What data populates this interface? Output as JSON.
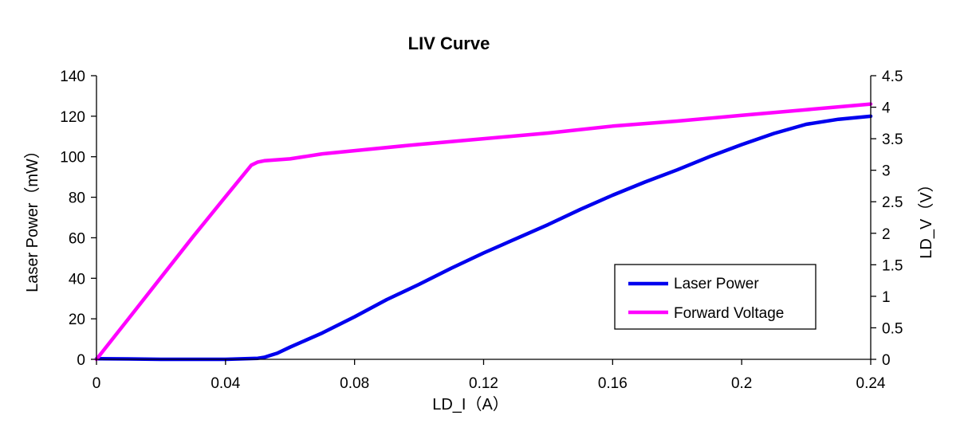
{
  "chart_data": {
    "type": "line",
    "title": "LIV Curve",
    "xlabel": "LD_I（A）",
    "ylabel": "Laser Power（mW）",
    "y2label": "LD_V（V）",
    "xlim": [
      0,
      0.24
    ],
    "ylim": [
      0,
      140
    ],
    "y2lim": [
      0,
      4.5
    ],
    "xticks": [
      "0",
      "0.04",
      "0.08",
      "0.12",
      "0.16",
      "0.2",
      "0.24"
    ],
    "yticks": [
      "0",
      "20",
      "40",
      "60",
      "80",
      "100",
      "120",
      "140"
    ],
    "y2ticks": [
      "0",
      "0.5",
      "1",
      "1.5",
      "2",
      "2.5",
      "3",
      "3.5",
      "4",
      "4.5"
    ],
    "grid": false,
    "legend_position": "lower-right",
    "series": [
      {
        "name": "Laser Power",
        "axis": "left",
        "color": "#0000ee",
        "x": [
          0,
          0.01,
          0.02,
          0.03,
          0.04,
          0.05,
          0.052,
          0.054,
          0.056,
          0.06,
          0.07,
          0.08,
          0.09,
          0.1,
          0.11,
          0.12,
          0.13,
          0.14,
          0.15,
          0.16,
          0.17,
          0.18,
          0.19,
          0.2,
          0.21,
          0.22,
          0.23,
          0.24
        ],
        "y": [
          0.3,
          0.2,
          0,
          0,
          0,
          0.5,
          1,
          2,
          3,
          6,
          13,
          21,
          29.5,
          37,
          45,
          52.5,
          59.5,
          66.5,
          74,
          81,
          87.5,
          93.5,
          100,
          106,
          111.5,
          116,
          118.5,
          120
        ]
      },
      {
        "name": "Forward Voltage",
        "axis": "right",
        "color": "#ff00ff",
        "x": [
          0,
          0.01,
          0.02,
          0.03,
          0.04,
          0.048,
          0.05,
          0.052,
          0.06,
          0.07,
          0.08,
          0.1,
          0.12,
          0.14,
          0.16,
          0.18,
          0.2,
          0.22,
          0.24
        ],
        "y": [
          0,
          0.65,
          1.3,
          1.95,
          2.58,
          3.08,
          3.13,
          3.15,
          3.18,
          3.26,
          3.31,
          3.41,
          3.5,
          3.59,
          3.7,
          3.78,
          3.87,
          3.96,
          4.05
        ]
      }
    ]
  }
}
